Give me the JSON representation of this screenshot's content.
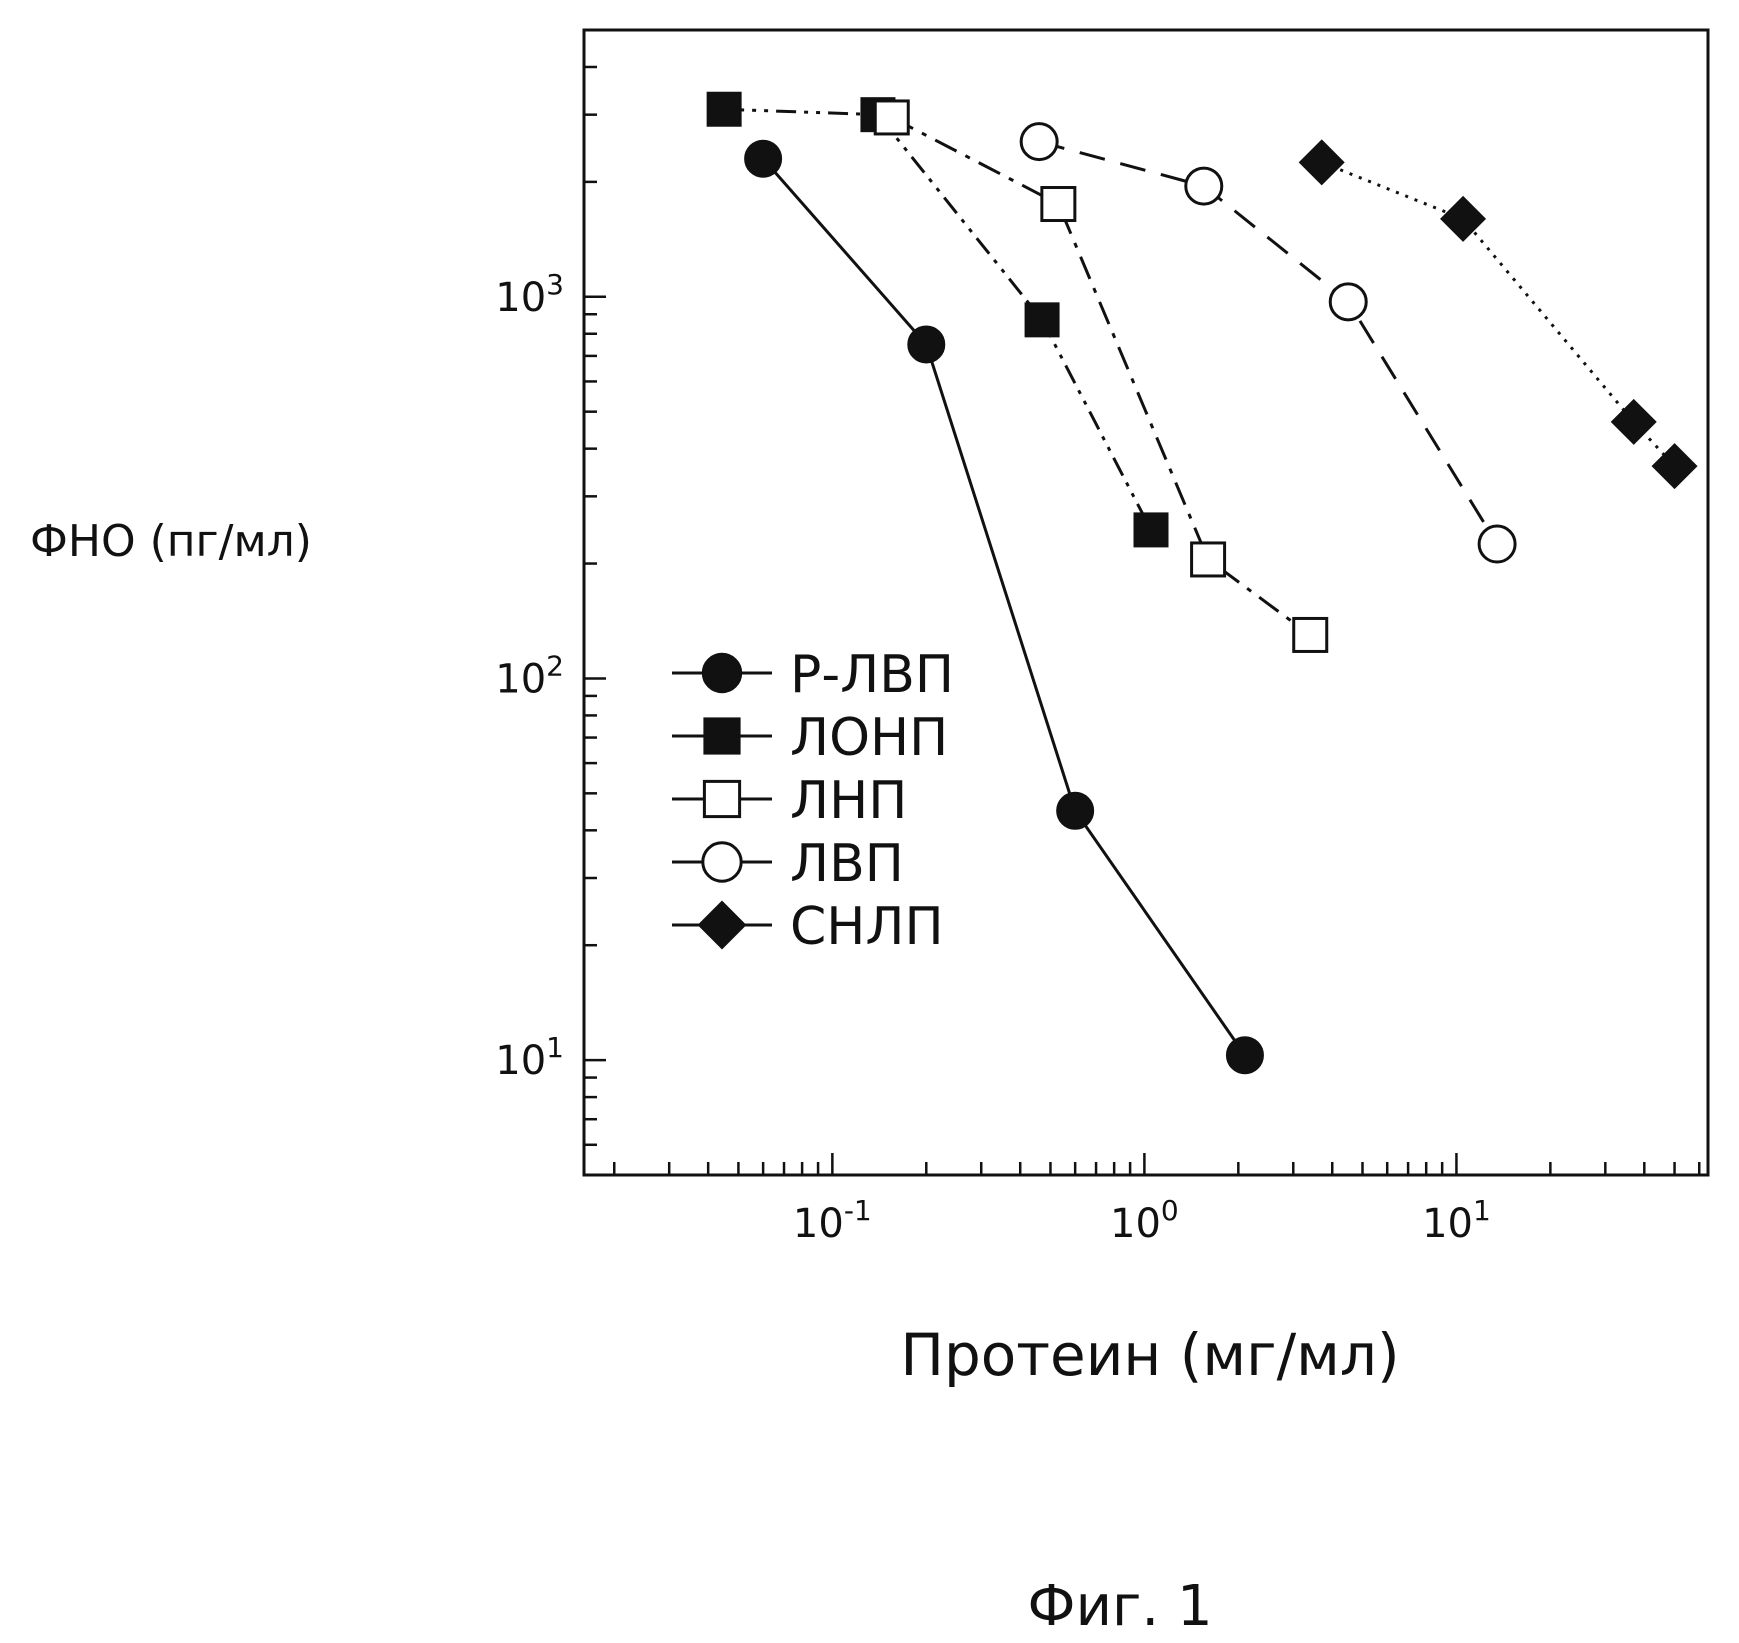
{
  "chart_data": {
    "type": "line",
    "title": "",
    "xlabel": "Протеин (мг/мл)",
    "ylabel": "ФНО (пг/мл)",
    "xscale": "log",
    "yscale": "log",
    "xlim": [
      0.016,
      64
    ],
    "ylim": [
      5,
      5000
    ],
    "grid": false,
    "legend_position": "lower-left inside",
    "x_ticks": [
      {
        "value": 0.1,
        "base": "10",
        "exp": "-1"
      },
      {
        "value": 1,
        "base": "10",
        "exp": "0"
      },
      {
        "value": 10,
        "base": "10",
        "exp": "1"
      }
    ],
    "y_ticks": [
      {
        "value": 10,
        "base": "10",
        "exp": "1"
      },
      {
        "value": 100,
        "base": "10",
        "exp": "2"
      },
      {
        "value": 1000,
        "base": "10",
        "exp": "3"
      }
    ],
    "series": [
      {
        "name": "Р-ЛВП",
        "marker": "filled-circle",
        "line": "solid",
        "x": [
          0.06,
          0.2,
          0.6,
          2.1
        ],
        "y": [
          2300,
          750,
          45,
          10.3
        ]
      },
      {
        "name": "ЛОНП",
        "marker": "filled-square",
        "line": "dash-dot-dot",
        "x": [
          0.045,
          0.14,
          0.47,
          1.05
        ],
        "y": [
          3100,
          3000,
          870,
          245
        ]
      },
      {
        "name": "ЛНП",
        "marker": "open-square",
        "line": "dash-dot",
        "x": [
          0.155,
          0.53,
          1.6,
          3.4
        ],
        "y": [
          2950,
          1750,
          205,
          130
        ]
      },
      {
        "name": "ЛВП",
        "marker": "open-circle",
        "line": "dashed",
        "x": [
          0.46,
          1.55,
          4.5,
          13.5
        ],
        "y": [
          2550,
          1950,
          970,
          225
        ]
      },
      {
        "name": "СНЛП",
        "marker": "filled-diamond",
        "line": "dotted",
        "x": [
          3.7,
          10.5,
          37,
          50
        ],
        "y": [
          2250,
          1600,
          470,
          360
        ]
      }
    ]
  },
  "caption": "Фиг. 1"
}
